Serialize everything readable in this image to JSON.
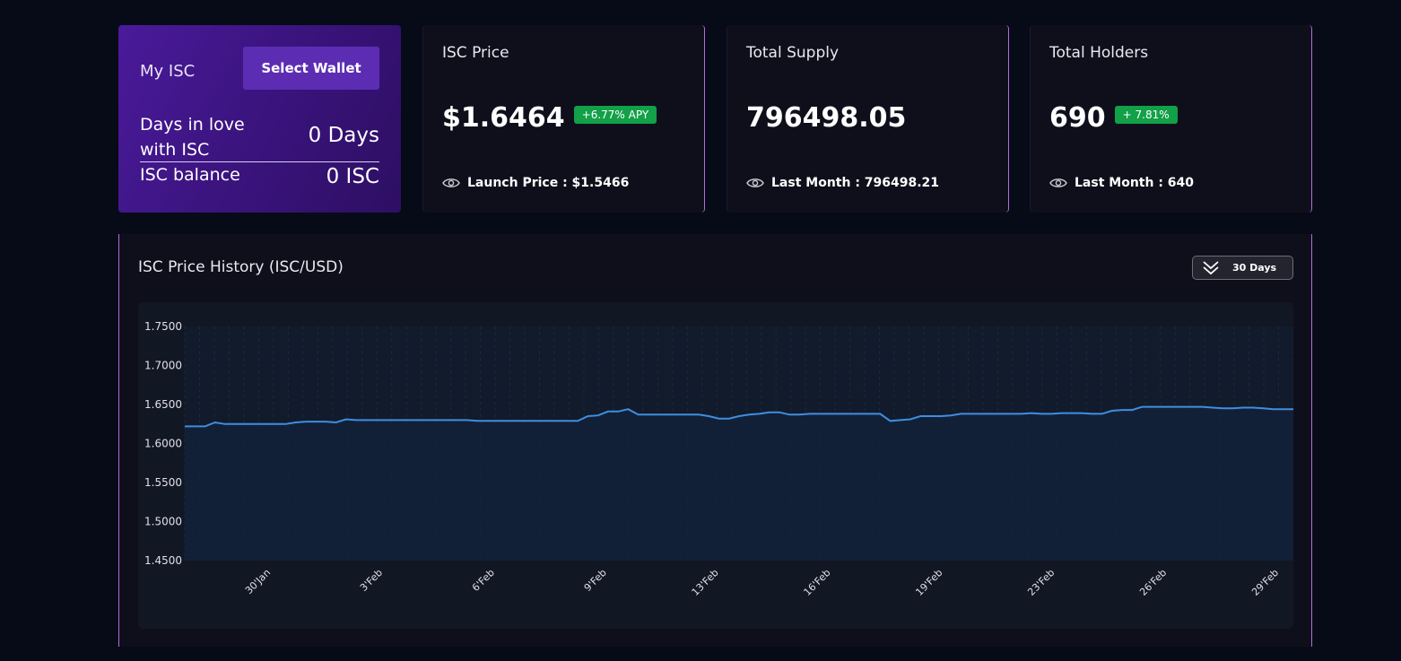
{
  "wallet": {
    "title": "My ISC",
    "select_wallet_label": "Select Wallet",
    "days_label": "Days in love with ISC",
    "days_value": "0 Days",
    "balance_label": "ISC balance",
    "balance_value": "0 ISC"
  },
  "stats": [
    {
      "title": "ISC Price",
      "value": "$1.6464",
      "badge": "+6.77% APY",
      "footer": "Launch Price : $1.5466"
    },
    {
      "title": "Total Supply",
      "value": "796498.05",
      "badge": "",
      "footer": "Last Month : 796498.21"
    },
    {
      "title": "Total Holders",
      "value": "690",
      "badge": "+ 7.81%",
      "footer": "Last Month : 640"
    }
  ],
  "colors": {
    "badge_green": "#12a048",
    "line": "#3f8ee0",
    "wallet_accent": "#5c2db3"
  },
  "history": {
    "title": "ISC Price History (ISC/USD)",
    "range_label": "30 Days",
    "range_icon": "double-chevron-down-icon"
  },
  "chart_data": {
    "type": "area",
    "title": "ISC Price History (ISC/USD)",
    "xlabel": "",
    "ylabel": "",
    "ylim": [
      1.45,
      1.75
    ],
    "y_ticks": [
      "1.7500",
      "1.7000",
      "1.6500",
      "1.6000",
      "1.5500",
      "1.5000",
      "1.4500"
    ],
    "x_tick_labels": [
      "30'Jan",
      "3'Feb",
      "6'Feb",
      "9'Feb",
      "13'Feb",
      "16'Feb",
      "19'Feb",
      "23'Feb",
      "26'Feb",
      "29'Feb"
    ],
    "grid": true,
    "series": [
      {
        "values": [
          1.622,
          1.622,
          1.622,
          1.627,
          1.625,
          1.625,
          1.625,
          1.625,
          1.625,
          1.625,
          1.625,
          1.627,
          1.628,
          1.628,
          1.628,
          1.627,
          1.631,
          1.63,
          1.63,
          1.63,
          1.63,
          1.63,
          1.63,
          1.63,
          1.63,
          1.63,
          1.63,
          1.63,
          1.63,
          1.629,
          1.629,
          1.629,
          1.629,
          1.629,
          1.629,
          1.629,
          1.629,
          1.629,
          1.629,
          1.629,
          1.635,
          1.636,
          1.641,
          1.641,
          1.644,
          1.637,
          1.637,
          1.637,
          1.637,
          1.637,
          1.637,
          1.637,
          1.635,
          1.632,
          1.632,
          1.635,
          1.637,
          1.638,
          1.64,
          1.64,
          1.637,
          1.637,
          1.638,
          1.638,
          1.638,
          1.638,
          1.638,
          1.638,
          1.638,
          1.638,
          1.629,
          1.63,
          1.631,
          1.635,
          1.635,
          1.635,
          1.636,
          1.638,
          1.638,
          1.638,
          1.638,
          1.638,
          1.638,
          1.638,
          1.639,
          1.638,
          1.638,
          1.639,
          1.639,
          1.639,
          1.638,
          1.638,
          1.642,
          1.643,
          1.643,
          1.647,
          1.647,
          1.647,
          1.647,
          1.647,
          1.647,
          1.647,
          1.646,
          1.645,
          1.645,
          1.646,
          1.646,
          1.645,
          1.644,
          1.644,
          1.644
        ]
      }
    ]
  }
}
